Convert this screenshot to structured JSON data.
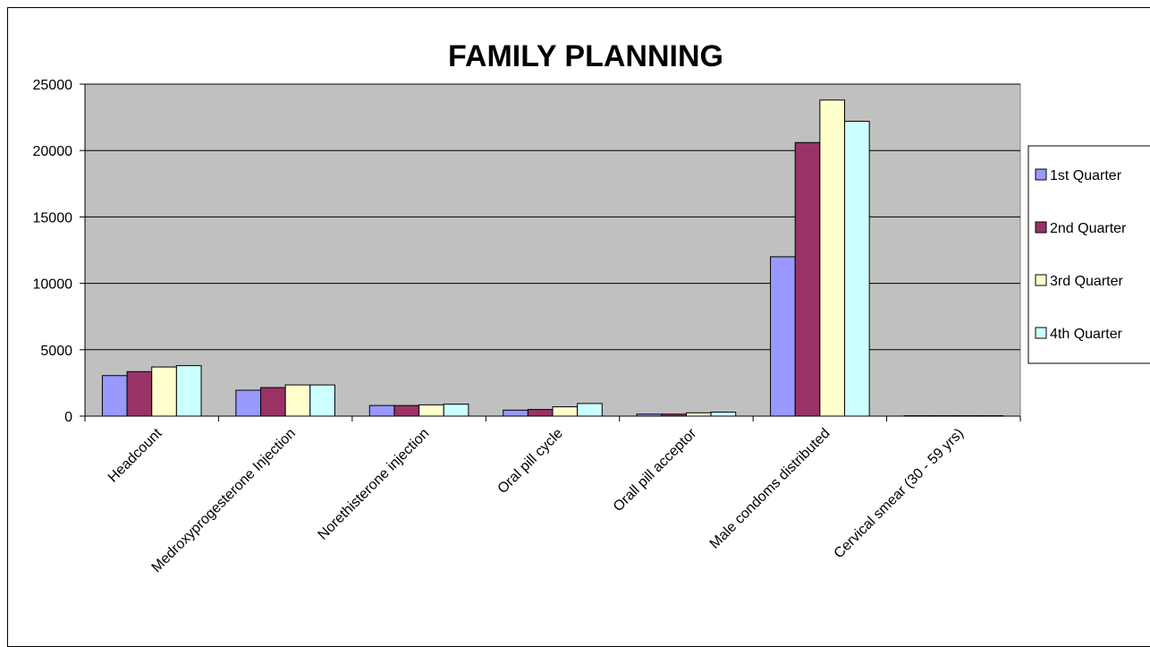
{
  "chart_data": {
    "type": "bar",
    "title": "FAMILY PLANNING",
    "xlabel": "",
    "ylabel": "",
    "ylim": [
      0,
      25000
    ],
    "yticks": [
      0,
      5000,
      10000,
      15000,
      20000,
      25000
    ],
    "grid": true,
    "legend_position": "right",
    "categories": [
      "Headcount",
      "Medroxyprogesterone Injection",
      "Norethisterone injection",
      "Oral pill cycle",
      "Orall pill acceptor",
      "Male condoms distributed",
      "Cervical smear (30 - 59 yrs)"
    ],
    "series": [
      {
        "name": "1st Quarter",
        "color": "#9999ff",
        "values": [
          3050,
          1950,
          800,
          450,
          150,
          12000,
          30
        ]
      },
      {
        "name": "2nd Quarter",
        "color": "#993366",
        "values": [
          3350,
          2150,
          800,
          500,
          150,
          20600,
          30
        ]
      },
      {
        "name": "3rd Quarter",
        "color": "#ffffcc",
        "values": [
          3700,
          2350,
          850,
          700,
          250,
          23800,
          30
        ]
      },
      {
        "name": "4th Quarter",
        "color": "#ccffff",
        "values": [
          3800,
          2350,
          900,
          950,
          300,
          22200,
          30
        ]
      }
    ],
    "plot_background": "#c0c0c0"
  }
}
